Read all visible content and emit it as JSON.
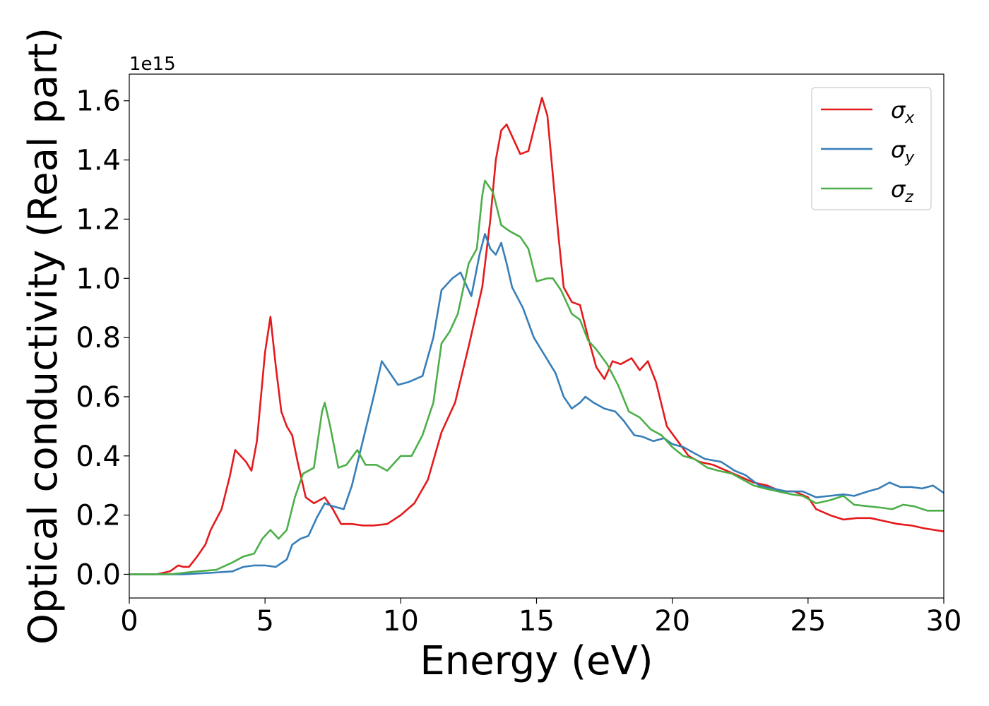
{
  "chart_data": {
    "type": "line",
    "title": "",
    "xlabel": "Energy (eV)",
    "ylabel": "Optical conductivity (Real part)",
    "y_offset_label": "1e15",
    "xlim": [
      0,
      30
    ],
    "ylim": [
      -0.08,
      1.69
    ],
    "x_ticks": [
      0,
      5,
      10,
      15,
      20,
      25,
      30
    ],
    "x_tick_labels": [
      "0",
      "5",
      "10",
      "15",
      "20",
      "25",
      "30"
    ],
    "y_ticks": [
      0.0,
      0.2,
      0.4,
      0.6,
      0.8,
      1.0,
      1.2,
      1.4,
      1.6
    ],
    "y_tick_labels": [
      "0.0",
      "0.2",
      "0.4",
      "0.6",
      "0.8",
      "1.0",
      "1.2",
      "1.4",
      "1.6"
    ],
    "grid": false,
    "legend_position": "top-right",
    "series": [
      {
        "name": "σx",
        "symbol": "σ",
        "subscript": "x",
        "color": "#e41a1c",
        "points": [
          [
            0,
            0.0
          ],
          [
            1.0,
            0.0
          ],
          [
            1.5,
            0.01
          ],
          [
            1.8,
            0.03
          ],
          [
            2.0,
            0.025
          ],
          [
            2.2,
            0.025
          ],
          [
            2.5,
            0.06
          ],
          [
            2.8,
            0.1
          ],
          [
            3.0,
            0.15
          ],
          [
            3.4,
            0.22
          ],
          [
            3.7,
            0.33
          ],
          [
            3.9,
            0.42
          ],
          [
            4.1,
            0.4
          ],
          [
            4.3,
            0.38
          ],
          [
            4.5,
            0.35
          ],
          [
            4.7,
            0.45
          ],
          [
            5.0,
            0.75
          ],
          [
            5.2,
            0.87
          ],
          [
            5.4,
            0.7
          ],
          [
            5.6,
            0.55
          ],
          [
            5.8,
            0.5
          ],
          [
            6.0,
            0.47
          ],
          [
            6.2,
            0.38
          ],
          [
            6.5,
            0.26
          ],
          [
            6.8,
            0.24
          ],
          [
            7.0,
            0.25
          ],
          [
            7.2,
            0.26
          ],
          [
            7.5,
            0.22
          ],
          [
            7.8,
            0.17
          ],
          [
            8.2,
            0.17
          ],
          [
            8.6,
            0.165
          ],
          [
            9.0,
            0.165
          ],
          [
            9.5,
            0.17
          ],
          [
            10.0,
            0.2
          ],
          [
            10.5,
            0.24
          ],
          [
            11.0,
            0.32
          ],
          [
            11.5,
            0.48
          ],
          [
            12.0,
            0.58
          ],
          [
            12.5,
            0.77
          ],
          [
            13.0,
            0.97
          ],
          [
            13.3,
            1.2
          ],
          [
            13.5,
            1.4
          ],
          [
            13.7,
            1.5
          ],
          [
            13.9,
            1.52
          ],
          [
            14.1,
            1.48
          ],
          [
            14.4,
            1.42
          ],
          [
            14.7,
            1.43
          ],
          [
            15.0,
            1.54
          ],
          [
            15.2,
            1.61
          ],
          [
            15.4,
            1.55
          ],
          [
            15.6,
            1.35
          ],
          [
            15.8,
            1.15
          ],
          [
            16.0,
            0.97
          ],
          [
            16.3,
            0.92
          ],
          [
            16.6,
            0.91
          ],
          [
            16.9,
            0.8
          ],
          [
            17.2,
            0.7
          ],
          [
            17.5,
            0.66
          ],
          [
            17.8,
            0.72
          ],
          [
            18.1,
            0.71
          ],
          [
            18.5,
            0.73
          ],
          [
            18.8,
            0.69
          ],
          [
            19.1,
            0.72
          ],
          [
            19.4,
            0.65
          ],
          [
            19.8,
            0.5
          ],
          [
            20.2,
            0.45
          ],
          [
            20.6,
            0.4
          ],
          [
            21.0,
            0.38
          ],
          [
            21.5,
            0.37
          ],
          [
            22.0,
            0.35
          ],
          [
            22.5,
            0.33
          ],
          [
            23.0,
            0.31
          ],
          [
            23.5,
            0.3
          ],
          [
            24.0,
            0.28
          ],
          [
            24.5,
            0.28
          ],
          [
            25.0,
            0.26
          ],
          [
            25.3,
            0.22
          ],
          [
            25.8,
            0.2
          ],
          [
            26.3,
            0.185
          ],
          [
            26.8,
            0.19
          ],
          [
            27.3,
            0.19
          ],
          [
            27.8,
            0.18
          ],
          [
            28.3,
            0.17
          ],
          [
            28.8,
            0.165
          ],
          [
            29.3,
            0.155
          ],
          [
            30.0,
            0.145
          ]
        ]
      },
      {
        "name": "σy",
        "symbol": "σ",
        "subscript": "y",
        "color": "#377eb8",
        "points": [
          [
            0,
            0.0
          ],
          [
            2.0,
            0.0
          ],
          [
            3.0,
            0.005
          ],
          [
            3.8,
            0.01
          ],
          [
            4.2,
            0.025
          ],
          [
            4.6,
            0.03
          ],
          [
            5.0,
            0.03
          ],
          [
            5.4,
            0.025
          ],
          [
            5.8,
            0.05
          ],
          [
            6.0,
            0.1
          ],
          [
            6.3,
            0.12
          ],
          [
            6.6,
            0.13
          ],
          [
            6.9,
            0.19
          ],
          [
            7.2,
            0.24
          ],
          [
            7.5,
            0.23
          ],
          [
            7.9,
            0.22
          ],
          [
            8.2,
            0.3
          ],
          [
            8.6,
            0.45
          ],
          [
            9.0,
            0.6
          ],
          [
            9.3,
            0.72
          ],
          [
            9.6,
            0.68
          ],
          [
            9.9,
            0.64
          ],
          [
            10.3,
            0.65
          ],
          [
            10.8,
            0.67
          ],
          [
            11.2,
            0.8
          ],
          [
            11.5,
            0.96
          ],
          [
            11.9,
            1.0
          ],
          [
            12.2,
            1.02
          ],
          [
            12.4,
            0.98
          ],
          [
            12.6,
            0.94
          ],
          [
            12.9,
            1.08
          ],
          [
            13.1,
            1.15
          ],
          [
            13.3,
            1.1
          ],
          [
            13.5,
            1.08
          ],
          [
            13.7,
            1.12
          ],
          [
            13.9,
            1.05
          ],
          [
            14.1,
            0.97
          ],
          [
            14.5,
            0.9
          ],
          [
            14.9,
            0.8
          ],
          [
            15.3,
            0.74
          ],
          [
            15.7,
            0.68
          ],
          [
            16.0,
            0.6
          ],
          [
            16.3,
            0.56
          ],
          [
            16.6,
            0.58
          ],
          [
            16.8,
            0.6
          ],
          [
            17.1,
            0.58
          ],
          [
            17.5,
            0.56
          ],
          [
            17.9,
            0.55
          ],
          [
            18.2,
            0.52
          ],
          [
            18.6,
            0.47
          ],
          [
            18.9,
            0.465
          ],
          [
            19.3,
            0.45
          ],
          [
            19.7,
            0.46
          ],
          [
            20.0,
            0.44
          ],
          [
            20.4,
            0.43
          ],
          [
            20.8,
            0.41
          ],
          [
            21.2,
            0.39
          ],
          [
            21.8,
            0.38
          ],
          [
            22.3,
            0.35
          ],
          [
            22.7,
            0.335
          ],
          [
            23.2,
            0.3
          ],
          [
            23.7,
            0.29
          ],
          [
            24.2,
            0.28
          ],
          [
            24.8,
            0.28
          ],
          [
            25.3,
            0.26
          ],
          [
            25.8,
            0.265
          ],
          [
            26.3,
            0.27
          ],
          [
            26.7,
            0.265
          ],
          [
            27.2,
            0.28
          ],
          [
            27.6,
            0.29
          ],
          [
            28.0,
            0.31
          ],
          [
            28.4,
            0.295
          ],
          [
            28.8,
            0.295
          ],
          [
            29.2,
            0.29
          ],
          [
            29.6,
            0.3
          ],
          [
            30.0,
            0.275
          ]
        ]
      },
      {
        "name": "σz",
        "symbol": "σ",
        "subscript": "z",
        "color": "#4daf4a",
        "points": [
          [
            0,
            0.0
          ],
          [
            1.5,
            0.0
          ],
          [
            2.5,
            0.01
          ],
          [
            3.2,
            0.015
          ],
          [
            3.8,
            0.04
          ],
          [
            4.2,
            0.06
          ],
          [
            4.6,
            0.07
          ],
          [
            4.9,
            0.12
          ],
          [
            5.2,
            0.15
          ],
          [
            5.5,
            0.12
          ],
          [
            5.8,
            0.15
          ],
          [
            6.1,
            0.26
          ],
          [
            6.4,
            0.34
          ],
          [
            6.8,
            0.36
          ],
          [
            7.1,
            0.55
          ],
          [
            7.2,
            0.58
          ],
          [
            7.4,
            0.5
          ],
          [
            7.7,
            0.36
          ],
          [
            8.0,
            0.37
          ],
          [
            8.4,
            0.42
          ],
          [
            8.7,
            0.37
          ],
          [
            9.1,
            0.37
          ],
          [
            9.5,
            0.35
          ],
          [
            10.0,
            0.4
          ],
          [
            10.4,
            0.4
          ],
          [
            10.8,
            0.47
          ],
          [
            11.2,
            0.58
          ],
          [
            11.5,
            0.78
          ],
          [
            11.8,
            0.82
          ],
          [
            12.1,
            0.88
          ],
          [
            12.5,
            1.05
          ],
          [
            12.8,
            1.1
          ],
          [
            13.0,
            1.28
          ],
          [
            13.1,
            1.33
          ],
          [
            13.4,
            1.29
          ],
          [
            13.7,
            1.18
          ],
          [
            14.0,
            1.16
          ],
          [
            14.4,
            1.14
          ],
          [
            14.7,
            1.1
          ],
          [
            15.0,
            0.99
          ],
          [
            15.4,
            1.0
          ],
          [
            15.6,
            1.0
          ],
          [
            15.9,
            0.96
          ],
          [
            16.3,
            0.88
          ],
          [
            16.6,
            0.86
          ],
          [
            16.9,
            0.79
          ],
          [
            17.2,
            0.76
          ],
          [
            17.6,
            0.71
          ],
          [
            18.0,
            0.64
          ],
          [
            18.4,
            0.55
          ],
          [
            18.8,
            0.53
          ],
          [
            19.2,
            0.49
          ],
          [
            19.6,
            0.47
          ],
          [
            20.0,
            0.43
          ],
          [
            20.4,
            0.4
          ],
          [
            20.8,
            0.39
          ],
          [
            21.3,
            0.36
          ],
          [
            21.7,
            0.35
          ],
          [
            22.2,
            0.34
          ],
          [
            22.6,
            0.32
          ],
          [
            23.0,
            0.3
          ],
          [
            23.4,
            0.29
          ],
          [
            23.9,
            0.28
          ],
          [
            24.4,
            0.27
          ],
          [
            24.8,
            0.265
          ],
          [
            25.3,
            0.24
          ],
          [
            25.8,
            0.25
          ],
          [
            26.3,
            0.265
          ],
          [
            26.7,
            0.235
          ],
          [
            27.2,
            0.23
          ],
          [
            27.7,
            0.225
          ],
          [
            28.1,
            0.22
          ],
          [
            28.5,
            0.235
          ],
          [
            28.9,
            0.23
          ],
          [
            29.4,
            0.215
          ],
          [
            30.0,
            0.215
          ]
        ]
      }
    ]
  }
}
